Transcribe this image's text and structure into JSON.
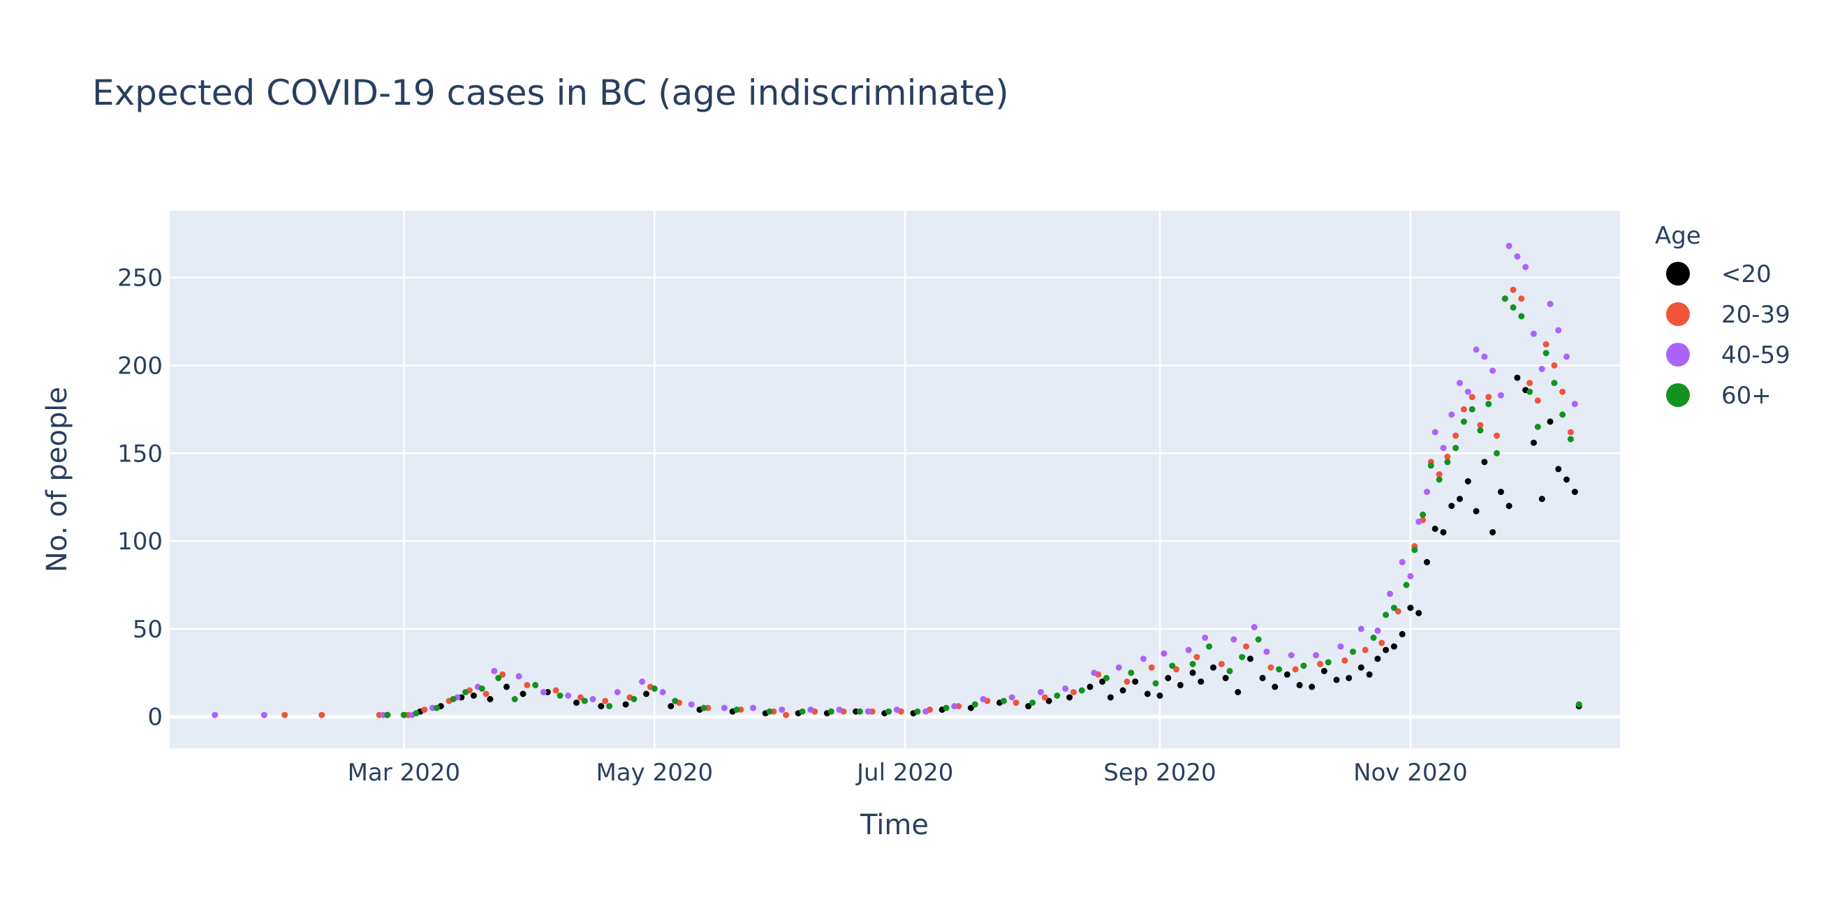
{
  "chart_data": {
    "type": "scatter",
    "title": "Expected COVID-19 cases in BC (age indiscriminate)",
    "xlabel": "Time",
    "ylabel": "No. of people",
    "x_range": [
      "2020-01-04",
      "2020-12-22"
    ],
    "y_range": [
      -18,
      288
    ],
    "x_ticks": [
      {
        "date": "2020-03-01",
        "label": "Mar 2020"
      },
      {
        "date": "2020-05-01",
        "label": "May 2020"
      },
      {
        "date": "2020-07-01",
        "label": "Jul 2020"
      },
      {
        "date": "2020-09-01",
        "label": "Sep 2020"
      },
      {
        "date": "2020-11-01",
        "label": "Nov 2020"
      }
    ],
    "y_ticks": [
      0,
      50,
      100,
      150,
      200,
      250
    ],
    "grid": true,
    "plot_background": "#e5ecf6",
    "legend": {
      "title": "Age",
      "position": "right"
    },
    "series": [
      {
        "name": "<20",
        "color": "#000000",
        "points": [
          [
            "2020-02-26",
            1
          ],
          [
            "2020-03-01",
            1
          ],
          [
            "2020-03-05",
            3
          ],
          [
            "2020-03-10",
            6
          ],
          [
            "2020-03-15",
            11
          ],
          [
            "2020-03-18",
            12
          ],
          [
            "2020-03-22",
            10
          ],
          [
            "2020-03-26",
            17
          ],
          [
            "2020-03-30",
            13
          ],
          [
            "2020-04-05",
            14
          ],
          [
            "2020-04-12",
            8
          ],
          [
            "2020-04-18",
            6
          ],
          [
            "2020-04-24",
            7
          ],
          [
            "2020-04-29",
            13
          ],
          [
            "2020-05-05",
            6
          ],
          [
            "2020-05-12",
            4
          ],
          [
            "2020-05-20",
            3
          ],
          [
            "2020-05-28",
            2
          ],
          [
            "2020-06-05",
            2
          ],
          [
            "2020-06-12",
            2
          ],
          [
            "2020-06-19",
            3
          ],
          [
            "2020-06-26",
            2
          ],
          [
            "2020-07-03",
            2
          ],
          [
            "2020-07-10",
            4
          ],
          [
            "2020-07-17",
            5
          ],
          [
            "2020-07-24",
            8
          ],
          [
            "2020-07-31",
            6
          ],
          [
            "2020-08-05",
            9
          ],
          [
            "2020-08-10",
            11
          ],
          [
            "2020-08-15",
            17
          ],
          [
            "2020-08-18",
            20
          ],
          [
            "2020-08-20",
            11
          ],
          [
            "2020-08-23",
            15
          ],
          [
            "2020-08-26",
            20
          ],
          [
            "2020-08-29",
            13
          ],
          [
            "2020-09-01",
            12
          ],
          [
            "2020-09-03",
            22
          ],
          [
            "2020-09-06",
            18
          ],
          [
            "2020-09-09",
            25
          ],
          [
            "2020-09-11",
            20
          ],
          [
            "2020-09-14",
            28
          ],
          [
            "2020-09-17",
            22
          ],
          [
            "2020-09-20",
            14
          ],
          [
            "2020-09-23",
            33
          ],
          [
            "2020-09-26",
            22
          ],
          [
            "2020-09-29",
            17
          ],
          [
            "2020-10-02",
            24
          ],
          [
            "2020-10-05",
            18
          ],
          [
            "2020-10-08",
            17
          ],
          [
            "2020-10-11",
            26
          ],
          [
            "2020-10-14",
            21
          ],
          [
            "2020-10-17",
            22
          ],
          [
            "2020-10-20",
            28
          ],
          [
            "2020-10-22",
            24
          ],
          [
            "2020-10-24",
            33
          ],
          [
            "2020-10-26",
            38
          ],
          [
            "2020-10-28",
            40
          ],
          [
            "2020-10-30",
            47
          ],
          [
            "2020-11-01",
            62
          ],
          [
            "2020-11-03",
            59
          ],
          [
            "2020-11-05",
            88
          ],
          [
            "2020-11-07",
            107
          ],
          [
            "2020-11-09",
            105
          ],
          [
            "2020-11-11",
            120
          ],
          [
            "2020-11-13",
            124
          ],
          [
            "2020-11-15",
            134
          ],
          [
            "2020-11-17",
            117
          ],
          [
            "2020-11-19",
            145
          ],
          [
            "2020-11-21",
            105
          ],
          [
            "2020-11-23",
            128
          ],
          [
            "2020-11-25",
            120
          ],
          [
            "2020-11-27",
            193
          ],
          [
            "2020-11-29",
            186
          ],
          [
            "2020-12-01",
            156
          ],
          [
            "2020-12-03",
            124
          ],
          [
            "2020-12-05",
            168
          ],
          [
            "2020-12-07",
            141
          ],
          [
            "2020-12-09",
            135
          ],
          [
            "2020-12-11",
            128
          ],
          [
            "2020-12-12",
            6
          ]
        ]
      },
      {
        "name": "20-39",
        "color": "#ef553b",
        "points": [
          [
            "2020-01-27",
            1
          ],
          [
            "2020-02-01",
            1
          ],
          [
            "2020-02-10",
            1
          ],
          [
            "2020-02-24",
            1
          ],
          [
            "2020-03-02",
            1
          ],
          [
            "2020-03-06",
            4
          ],
          [
            "2020-03-12",
            9
          ],
          [
            "2020-03-17",
            15
          ],
          [
            "2020-03-21",
            13
          ],
          [
            "2020-03-25",
            24
          ],
          [
            "2020-03-31",
            18
          ],
          [
            "2020-04-07",
            15
          ],
          [
            "2020-04-13",
            11
          ],
          [
            "2020-04-19",
            9
          ],
          [
            "2020-04-25",
            11
          ],
          [
            "2020-04-30",
            17
          ],
          [
            "2020-05-07",
            8
          ],
          [
            "2020-05-14",
            5
          ],
          [
            "2020-05-22",
            4
          ],
          [
            "2020-05-30",
            3
          ],
          [
            "2020-06-02",
            1
          ],
          [
            "2020-06-09",
            3
          ],
          [
            "2020-06-16",
            3
          ],
          [
            "2020-06-23",
            3
          ],
          [
            "2020-06-30",
            3
          ],
          [
            "2020-07-07",
            4
          ],
          [
            "2020-07-14",
            6
          ],
          [
            "2020-07-21",
            9
          ],
          [
            "2020-07-28",
            8
          ],
          [
            "2020-08-04",
            11
          ],
          [
            "2020-08-11",
            14
          ],
          [
            "2020-08-17",
            24
          ],
          [
            "2020-08-24",
            20
          ],
          [
            "2020-08-30",
            28
          ],
          [
            "2020-09-05",
            27
          ],
          [
            "2020-09-10",
            34
          ],
          [
            "2020-09-16",
            30
          ],
          [
            "2020-09-22",
            40
          ],
          [
            "2020-09-28",
            28
          ],
          [
            "2020-10-04",
            27
          ],
          [
            "2020-10-10",
            30
          ],
          [
            "2020-10-16",
            32
          ],
          [
            "2020-10-21",
            38
          ],
          [
            "2020-10-25",
            42
          ],
          [
            "2020-10-29",
            60
          ],
          [
            "2020-11-02",
            97
          ],
          [
            "2020-11-04",
            112
          ],
          [
            "2020-11-06",
            145
          ],
          [
            "2020-11-08",
            138
          ],
          [
            "2020-11-10",
            148
          ],
          [
            "2020-11-12",
            160
          ],
          [
            "2020-11-14",
            175
          ],
          [
            "2020-11-16",
            182
          ],
          [
            "2020-11-18",
            166
          ],
          [
            "2020-11-20",
            182
          ],
          [
            "2020-11-22",
            160
          ],
          [
            "2020-11-24",
            238
          ],
          [
            "2020-11-26",
            243
          ],
          [
            "2020-11-28",
            238
          ],
          [
            "2020-11-30",
            190
          ],
          [
            "2020-12-02",
            180
          ],
          [
            "2020-12-04",
            212
          ],
          [
            "2020-12-06",
            200
          ],
          [
            "2020-12-08",
            185
          ],
          [
            "2020-12-10",
            162
          ]
        ]
      },
      {
        "name": "40-59",
        "color": "#ab63fa",
        "points": [
          [
            "2020-01-15",
            1
          ],
          [
            "2020-01-27",
            1
          ],
          [
            "2020-02-25",
            1
          ],
          [
            "2020-03-03",
            1
          ],
          [
            "2020-03-08",
            5
          ],
          [
            "2020-03-14",
            11
          ],
          [
            "2020-03-19",
            17
          ],
          [
            "2020-03-23",
            26
          ],
          [
            "2020-03-29",
            23
          ],
          [
            "2020-04-04",
            14
          ],
          [
            "2020-04-10",
            12
          ],
          [
            "2020-04-16",
            10
          ],
          [
            "2020-04-22",
            14
          ],
          [
            "2020-04-28",
            20
          ],
          [
            "2020-05-03",
            14
          ],
          [
            "2020-05-10",
            7
          ],
          [
            "2020-05-18",
            5
          ],
          [
            "2020-05-25",
            5
          ],
          [
            "2020-06-01",
            4
          ],
          [
            "2020-06-08",
            4
          ],
          [
            "2020-06-15",
            4
          ],
          [
            "2020-06-22",
            3
          ],
          [
            "2020-06-29",
            4
          ],
          [
            "2020-07-06",
            3
          ],
          [
            "2020-07-13",
            6
          ],
          [
            "2020-07-20",
            10
          ],
          [
            "2020-07-27",
            11
          ],
          [
            "2020-08-03",
            14
          ],
          [
            "2020-08-09",
            16
          ],
          [
            "2020-08-16",
            25
          ],
          [
            "2020-08-22",
            28
          ],
          [
            "2020-08-28",
            33
          ],
          [
            "2020-09-02",
            36
          ],
          [
            "2020-09-08",
            38
          ],
          [
            "2020-09-12",
            45
          ],
          [
            "2020-09-19",
            44
          ],
          [
            "2020-09-24",
            51
          ],
          [
            "2020-09-27",
            37
          ],
          [
            "2020-10-03",
            35
          ],
          [
            "2020-10-09",
            35
          ],
          [
            "2020-10-15",
            40
          ],
          [
            "2020-10-20",
            50
          ],
          [
            "2020-10-24",
            49
          ],
          [
            "2020-10-27",
            70
          ],
          [
            "2020-10-30",
            88
          ],
          [
            "2020-11-01",
            80
          ],
          [
            "2020-11-03",
            111
          ],
          [
            "2020-11-05",
            128
          ],
          [
            "2020-11-07",
            162
          ],
          [
            "2020-11-09",
            153
          ],
          [
            "2020-11-11",
            172
          ],
          [
            "2020-11-13",
            190
          ],
          [
            "2020-11-15",
            185
          ],
          [
            "2020-11-17",
            209
          ],
          [
            "2020-11-19",
            205
          ],
          [
            "2020-11-21",
            197
          ],
          [
            "2020-11-23",
            183
          ],
          [
            "2020-11-25",
            268
          ],
          [
            "2020-11-27",
            262
          ],
          [
            "2020-11-29",
            256
          ],
          [
            "2020-12-01",
            218
          ],
          [
            "2020-12-03",
            198
          ],
          [
            "2020-12-05",
            235
          ],
          [
            "2020-12-07",
            220
          ],
          [
            "2020-12-09",
            205
          ],
          [
            "2020-12-11",
            178
          ]
        ]
      },
      {
        "name": "60+",
        "color": "#13921f",
        "points": [
          [
            "2020-02-26",
            1
          ],
          [
            "2020-03-01",
            1
          ],
          [
            "2020-03-04",
            2
          ],
          [
            "2020-03-09",
            5
          ],
          [
            "2020-03-13",
            10
          ],
          [
            "2020-03-16",
            14
          ],
          [
            "2020-03-20",
            16
          ],
          [
            "2020-03-24",
            22
          ],
          [
            "2020-03-28",
            10
          ],
          [
            "2020-04-02",
            18
          ],
          [
            "2020-04-08",
            12
          ],
          [
            "2020-04-14",
            9
          ],
          [
            "2020-04-20",
            6
          ],
          [
            "2020-04-26",
            10
          ],
          [
            "2020-05-01",
            16
          ],
          [
            "2020-05-06",
            9
          ],
          [
            "2020-05-13",
            5
          ],
          [
            "2020-05-21",
            4
          ],
          [
            "2020-05-29",
            3
          ],
          [
            "2020-06-06",
            3
          ],
          [
            "2020-06-13",
            3
          ],
          [
            "2020-06-20",
            3
          ],
          [
            "2020-06-27",
            3
          ],
          [
            "2020-07-04",
            3
          ],
          [
            "2020-07-11",
            5
          ],
          [
            "2020-07-18",
            7
          ],
          [
            "2020-07-25",
            9
          ],
          [
            "2020-08-01",
            8
          ],
          [
            "2020-08-07",
            12
          ],
          [
            "2020-08-13",
            15
          ],
          [
            "2020-08-19",
            22
          ],
          [
            "2020-08-25",
            25
          ],
          [
            "2020-08-31",
            19
          ],
          [
            "2020-09-04",
            29
          ],
          [
            "2020-09-09",
            30
          ],
          [
            "2020-09-13",
            40
          ],
          [
            "2020-09-18",
            26
          ],
          [
            "2020-09-21",
            34
          ],
          [
            "2020-09-25",
            44
          ],
          [
            "2020-09-30",
            27
          ],
          [
            "2020-10-06",
            29
          ],
          [
            "2020-10-12",
            31
          ],
          [
            "2020-10-18",
            37
          ],
          [
            "2020-10-23",
            45
          ],
          [
            "2020-10-26",
            58
          ],
          [
            "2020-10-28",
            62
          ],
          [
            "2020-10-31",
            75
          ],
          [
            "2020-11-02",
            95
          ],
          [
            "2020-11-04",
            115
          ],
          [
            "2020-11-06",
            143
          ],
          [
            "2020-11-08",
            135
          ],
          [
            "2020-11-10",
            145
          ],
          [
            "2020-11-12",
            153
          ],
          [
            "2020-11-14",
            168
          ],
          [
            "2020-11-16",
            175
          ],
          [
            "2020-11-18",
            163
          ],
          [
            "2020-11-20",
            178
          ],
          [
            "2020-11-22",
            150
          ],
          [
            "2020-11-24",
            238
          ],
          [
            "2020-11-26",
            233
          ],
          [
            "2020-11-28",
            228
          ],
          [
            "2020-11-30",
            185
          ],
          [
            "2020-12-02",
            165
          ],
          [
            "2020-12-04",
            207
          ],
          [
            "2020-12-06",
            190
          ],
          [
            "2020-12-08",
            172
          ],
          [
            "2020-12-10",
            158
          ],
          [
            "2020-12-12",
            7
          ]
        ]
      }
    ]
  }
}
